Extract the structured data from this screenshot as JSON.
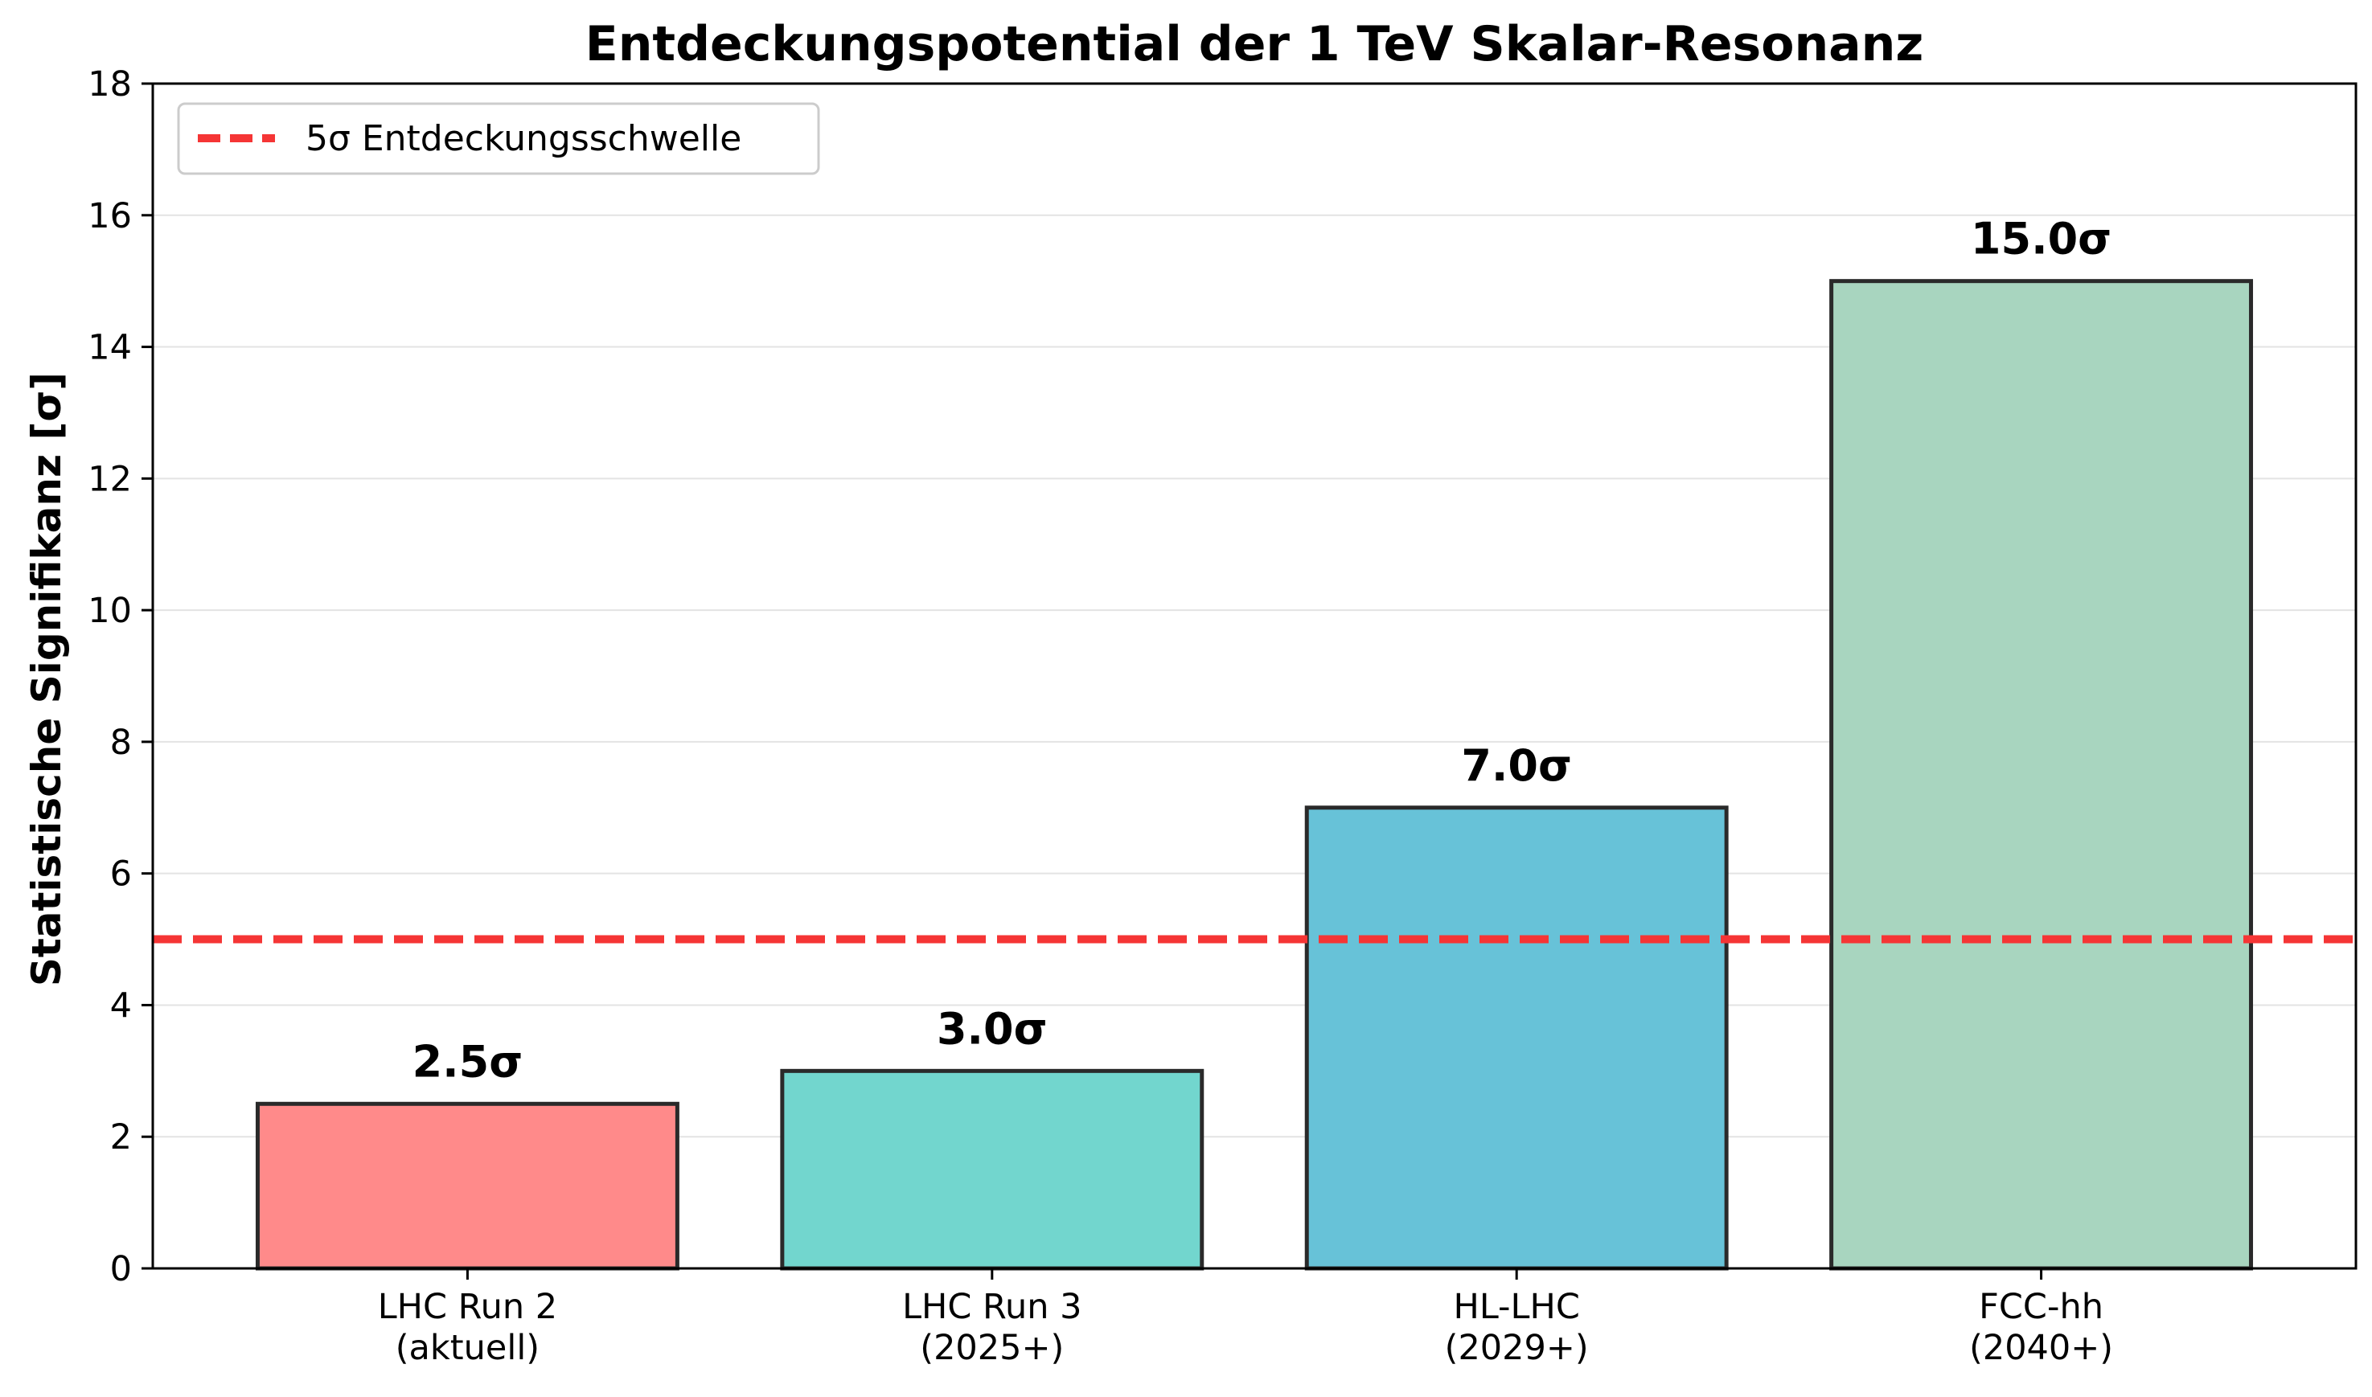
{
  "chart_data": {
    "type": "bar",
    "title": "Entdeckungspotential der 1 TeV Skalar-Resonanz",
    "xlabel": "",
    "ylabel": "Statistische Signifikanz [σ]",
    "ylim": [
      0,
      18
    ],
    "yticks": [
      0,
      2,
      4,
      6,
      8,
      10,
      12,
      14,
      16,
      18
    ],
    "grid": "horizontal",
    "categories": [
      [
        "LHC Run 2",
        "(aktuell)"
      ],
      [
        "LHC Run 3",
        "(2025+)"
      ],
      [
        "HL-LHC",
        "(2029+)"
      ],
      [
        "FCC-hh",
        "(2040+)"
      ]
    ],
    "values": [
      2.5,
      3.0,
      7.0,
      15.0
    ],
    "data_labels": [
      "2.5σ",
      "3.0σ",
      "7.0σ",
      "15.0σ"
    ],
    "colors": [
      "#FF8A8A",
      "#72D6CE",
      "#67C2D8",
      "#A8D5BF"
    ],
    "edge_color": "#2a2a2a",
    "threshold": {
      "value": 5,
      "label": "5σ Entdeckungsschwelle",
      "color": "#F53535",
      "style": "dashed"
    },
    "legend_position": "top-left"
  }
}
